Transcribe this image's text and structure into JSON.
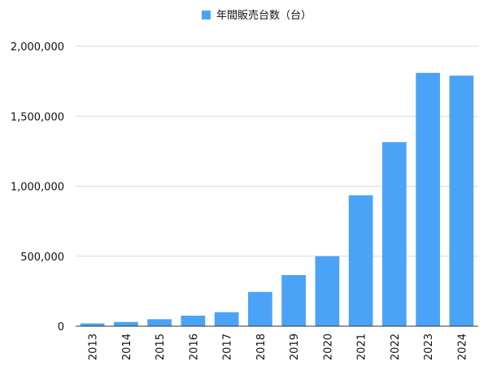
{
  "chart_data": {
    "type": "bar",
    "categories": [
      "2013",
      "2014",
      "2015",
      "2016",
      "2017",
      "2018",
      "2019",
      "2020",
      "2021",
      "2022",
      "2023",
      "2024"
    ],
    "series": [
      {
        "name": "年間販売台数（台）",
        "values": [
          20000,
          30000,
          50000,
          75000,
          100000,
          245000,
          365000,
          500000,
          935000,
          1315000,
          1810000,
          1790000
        ]
      }
    ],
    "ylim": [
      0,
      2000000
    ],
    "yticks": [
      0,
      500000,
      1000000,
      1500000,
      2000000
    ],
    "ytick_labels": [
      "0",
      "500,000",
      "1,000,000",
      "1,500,000",
      "2,000,000"
    ],
    "xlabel": "",
    "ylabel": "",
    "title": "",
    "grid": true,
    "legend_position": "top-center",
    "colors": {
      "bar": "#4aa3f7",
      "grid": "#d9d9d9",
      "axis": "#333333"
    }
  }
}
